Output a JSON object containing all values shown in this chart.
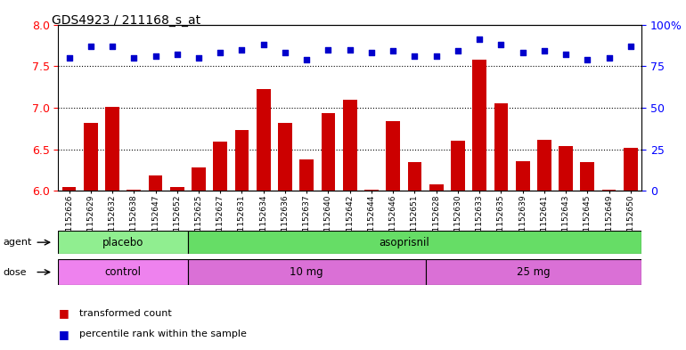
{
  "title": "GDS4923 / 211168_s_at",
  "samples": [
    "GSM1152626",
    "GSM1152629",
    "GSM1152632",
    "GSM1152638",
    "GSM1152647",
    "GSM1152652",
    "GSM1152625",
    "GSM1152627",
    "GSM1152631",
    "GSM1152634",
    "GSM1152636",
    "GSM1152637",
    "GSM1152640",
    "GSM1152642",
    "GSM1152644",
    "GSM1152646",
    "GSM1152651",
    "GSM1152628",
    "GSM1152630",
    "GSM1152633",
    "GSM1152635",
    "GSM1152639",
    "GSM1152641",
    "GSM1152643",
    "GSM1152645",
    "GSM1152649",
    "GSM1152650"
  ],
  "bar_values": [
    6.05,
    6.82,
    7.01,
    6.01,
    6.18,
    6.04,
    6.28,
    6.59,
    6.73,
    7.22,
    6.82,
    6.38,
    6.93,
    7.1,
    6.01,
    6.84,
    6.34,
    6.08,
    6.6,
    7.58,
    7.05,
    6.36,
    6.61,
    6.54,
    6.35,
    6.01,
    6.52
  ],
  "percentile_raw": [
    80,
    87,
    87,
    80,
    81,
    82,
    80,
    83,
    85,
    88,
    83,
    79,
    85,
    85,
    83,
    84,
    81,
    81,
    84,
    91,
    88,
    83,
    84,
    82,
    79,
    80,
    87
  ],
  "ylim_left": [
    6.0,
    8.0
  ],
  "yticks_left": [
    6.0,
    6.5,
    7.0,
    7.5,
    8.0
  ],
  "yticks_right": [
    0,
    25,
    50,
    75,
    100
  ],
  "ytick_right_labels": [
    "0",
    "25",
    "50",
    "75",
    "100%"
  ],
  "bar_color": "#cc0000",
  "dot_color": "#0000cc",
  "agent_placebo_color": "#90ee90",
  "agent_asoprisnil_color": "#66dd66",
  "dose_control_color": "#ee82ee",
  "dose_mg_color": "#da70d6",
  "background_color": "#ffffff",
  "legend_items": [
    {
      "color": "#cc0000",
      "label": "transformed count"
    },
    {
      "color": "#0000cc",
      "label": "percentile rank within the sample"
    }
  ]
}
